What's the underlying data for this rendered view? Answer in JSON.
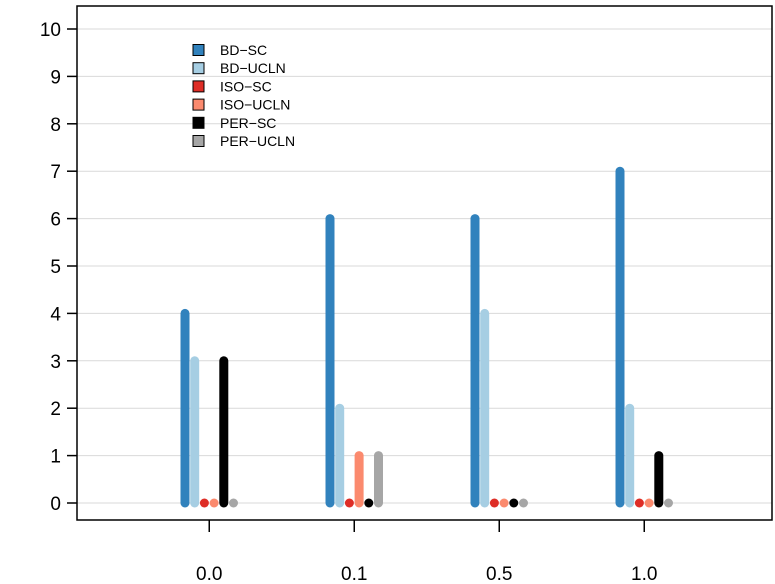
{
  "chart_data": {
    "type": "bar",
    "categories": [
      "0.0",
      "0.1",
      "0.5",
      "1.0"
    ],
    "series": [
      {
        "name": "BD−SC",
        "color": "#3182bd",
        "values": [
          4,
          6,
          6,
          7
        ]
      },
      {
        "name": "BD−UCLN",
        "color": "#a6cee3",
        "values": [
          3,
          2,
          4,
          2
        ]
      },
      {
        "name": "ISO−SC",
        "color": "#de2d26",
        "values": [
          0,
          0,
          0,
          0
        ]
      },
      {
        "name": "ISO−UCLN",
        "color": "#fb8a6e",
        "values": [
          0,
          1,
          0,
          0
        ]
      },
      {
        "name": "PER−SC",
        "color": "#000000",
        "values": [
          3,
          0,
          0,
          1
        ]
      },
      {
        "name": "PER−UCLN",
        "color": "#a6a6a6",
        "values": [
          0,
          1,
          0,
          0
        ]
      }
    ],
    "y_ticks": [
      0,
      1,
      2,
      3,
      4,
      5,
      6,
      7,
      8,
      9,
      10
    ],
    "ylim": [
      0,
      10
    ],
    "grid": "horizontal",
    "legend_position": "top-left",
    "title": "",
    "xlabel": "",
    "ylabel": ""
  }
}
